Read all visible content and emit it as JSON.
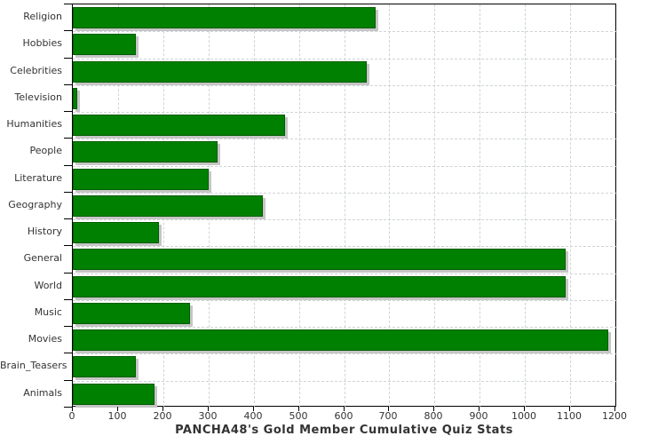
{
  "chart_data": {
    "type": "bar",
    "orientation": "horizontal",
    "title": "PANCHA48's Gold Member Cumulative Quiz Stats",
    "categories": [
      "Religion",
      "Hobbies",
      "Celebrities",
      "Television",
      "Humanities",
      "People",
      "Literature",
      "Geography",
      "History",
      "General",
      "World",
      "Music",
      "Movies",
      "Brain_Teasers",
      "Animals"
    ],
    "values": [
      670,
      140,
      650,
      10,
      470,
      320,
      300,
      420,
      190,
      1090,
      1090,
      260,
      1185,
      140,
      180
    ],
    "xlabel": "",
    "ylabel": "",
    "xlim": [
      0,
      1200
    ],
    "x_ticks": [
      0,
      100,
      200,
      300,
      400,
      500,
      600,
      700,
      800,
      900,
      1000,
      1100,
      1200
    ],
    "grid": "dashed, both axes",
    "legend": "none",
    "colors": {
      "bar_fill": "#008000",
      "bar_border": "#015c01",
      "bar_shadow": "#c6c6c6",
      "grid_line": "#cfd4d8",
      "axis_line": "#000000",
      "tick_text": "#333333",
      "title_text": "#333333",
      "background": "#ffffff",
      "image_edge": "#000000"
    }
  }
}
